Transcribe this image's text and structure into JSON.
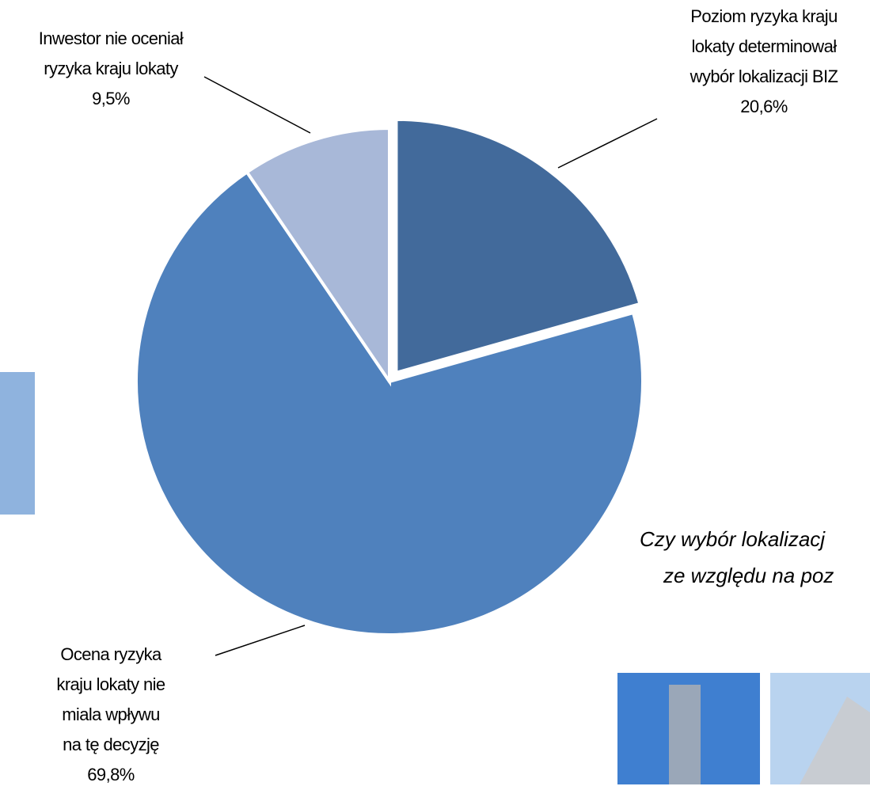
{
  "chart_data": {
    "type": "pie",
    "categories": [
      "Poziom ryzyka kraju lokaty determinował wybór lokalizacji BIZ",
      "Ocena ryzyka kraju lokaty nie miala wpływu na tę decyzję",
      "Inwestor nie oceniał ryzyka kraju lokaty"
    ],
    "values": [
      20.6,
      69.8,
      9.5
    ],
    "value_labels": [
      "20,6%",
      "69,8%",
      "9,5%"
    ],
    "colors": [
      "#426a9b",
      "#4f81bd",
      "#a8b8d8"
    ]
  },
  "question": [
    "Czy wybór lokalizacj",
    "ze względu na poz"
  ]
}
